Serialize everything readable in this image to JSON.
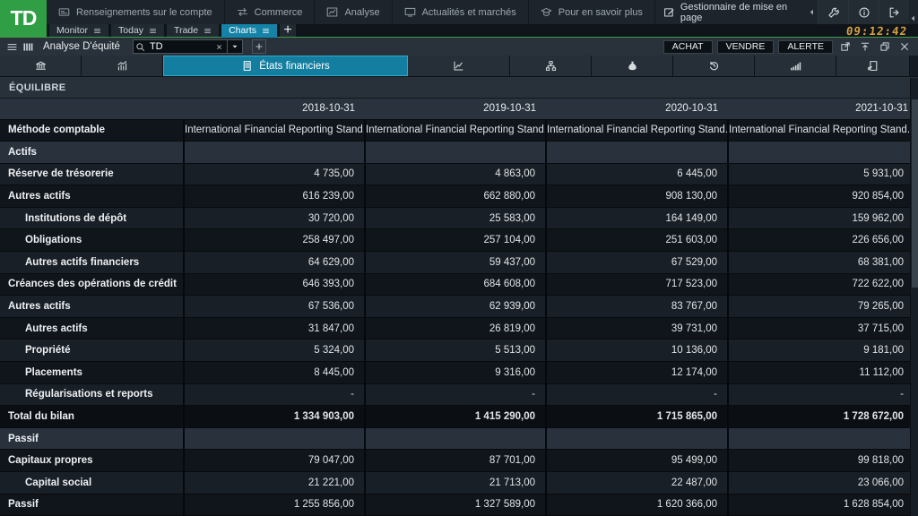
{
  "topbar": {
    "logo_text": "TD",
    "menu": [
      {
        "label": "Renseignements sur le compte",
        "icon": "account-icon"
      },
      {
        "label": "Commerce",
        "icon": "transfer-icon"
      },
      {
        "label": "Analyse",
        "icon": "analysis-icon"
      },
      {
        "label": "Actualités et marchés",
        "icon": "news-icon"
      },
      {
        "label": "Pour en savoir plus",
        "icon": "learn-icon"
      }
    ],
    "layout_manager_label": "Gestionnaire de mise en page",
    "system_icons": [
      "wrench-icon",
      "info-icon",
      "exit-icon"
    ],
    "clock": "09:12:42"
  },
  "workspace_tabs": {
    "tabs": [
      {
        "label": "Monitor",
        "selected": false
      },
      {
        "label": "Today",
        "selected": false
      },
      {
        "label": "Trade",
        "selected": false
      },
      {
        "label": "Charts",
        "selected": true
      }
    ],
    "add_label": "+"
  },
  "panel": {
    "title": "Analyse D'équité",
    "search_value": "TD",
    "trade_buttons": [
      {
        "name": "buy-button",
        "label": "ACHAT"
      },
      {
        "name": "sell-button",
        "label": "VENDRE"
      },
      {
        "name": "alert-button",
        "label": "ALERTE"
      }
    ],
    "window_icons": [
      "popout-icon",
      "pin-top-icon",
      "cascade-icon",
      "close-icon"
    ]
  },
  "view_tabs": [
    {
      "icon": "bank-icon",
      "label": "",
      "selected": false
    },
    {
      "icon": "price-chart-icon",
      "label": "",
      "selected": false
    },
    {
      "icon": "statements-icon",
      "label": "États financiers",
      "selected": true
    },
    {
      "icon": "line-chart-icon",
      "label": "",
      "selected": false
    },
    {
      "icon": "org-chart-icon",
      "label": "",
      "selected": false
    },
    {
      "icon": "money-bag-icon",
      "label": "",
      "selected": false
    },
    {
      "icon": "history-icon",
      "label": "",
      "selected": false
    },
    {
      "icon": "signal-bars-icon",
      "label": "",
      "selected": false
    },
    {
      "icon": "report-icon",
      "label": "",
      "selected": false
    }
  ],
  "section_header": "ÉQUILIBRE",
  "table": {
    "columns": [
      "2018-10-31",
      "2019-10-31",
      "2020-10-31",
      "2021-10-31"
    ],
    "rows": [
      {
        "label": "Méthode comptable",
        "kind": "data",
        "shade": "dark",
        "indent": 0,
        "values": [
          "International Financial Reporting Stand.",
          "International Financial Reporting Stand.",
          "International Financial Reporting Stand.",
          "International Financial Reporting Stand."
        ]
      },
      {
        "label": "Actifs",
        "kind": "section",
        "indent": 0,
        "values": [
          "",
          "",
          "",
          ""
        ]
      },
      {
        "label": "Réserve de trésorerie",
        "kind": "data",
        "shade": "light",
        "indent": 0,
        "values": [
          "4 735,00",
          "4 863,00",
          "6 445,00",
          "5 931,00"
        ]
      },
      {
        "label": "Autres actifs",
        "kind": "data",
        "shade": "dark",
        "indent": 0,
        "values": [
          "616 239,00",
          "662 880,00",
          "908 130,00",
          "920 854,00"
        ]
      },
      {
        "label": "Institutions de dépôt",
        "kind": "data",
        "shade": "light",
        "indent": 1,
        "values": [
          "30 720,00",
          "25 583,00",
          "164 149,00",
          "159 962,00"
        ]
      },
      {
        "label": "Obligations",
        "kind": "data",
        "shade": "dark",
        "indent": 1,
        "values": [
          "258 497,00",
          "257 104,00",
          "251 603,00",
          "226 656,00"
        ]
      },
      {
        "label": "Autres actifs financiers",
        "kind": "data",
        "shade": "light",
        "indent": 1,
        "values": [
          "64 629,00",
          "59 437,00",
          "67 529,00",
          "68 381,00"
        ]
      },
      {
        "label": "Créances des opérations de crédit",
        "kind": "data",
        "shade": "dark",
        "indent": 0,
        "values": [
          "646 393,00",
          "684 608,00",
          "717 523,00",
          "722 622,00"
        ]
      },
      {
        "label": "Autres actifs",
        "kind": "data",
        "shade": "light",
        "indent": 0,
        "values": [
          "67 536,00",
          "62 939,00",
          "83 767,00",
          "79 265,00"
        ]
      },
      {
        "label": "Autres actifs",
        "kind": "data",
        "shade": "dark",
        "indent": 1,
        "values": [
          "31 847,00",
          "26 819,00",
          "39 731,00",
          "37 715,00"
        ]
      },
      {
        "label": "Propriété",
        "kind": "data",
        "shade": "light",
        "indent": 1,
        "values": [
          "5 324,00",
          "5 513,00",
          "10 136,00",
          "9 181,00"
        ]
      },
      {
        "label": "Placements",
        "kind": "data",
        "shade": "dark",
        "indent": 1,
        "values": [
          "8 445,00",
          "9 316,00",
          "12 174,00",
          "11 112,00"
        ]
      },
      {
        "label": "Régularisations et reports",
        "kind": "data",
        "shade": "light",
        "indent": 1,
        "values": [
          "-",
          "-",
          "-",
          "-"
        ]
      },
      {
        "label": "Total du bilan",
        "kind": "total",
        "shade": "dark",
        "indent": 0,
        "values": [
          "1 334 903,00",
          "1 415 290,00",
          "1 715 865,00",
          "1 728 672,00"
        ]
      },
      {
        "label": "Passif",
        "kind": "section",
        "indent": 0,
        "values": [
          "",
          "",
          "",
          ""
        ]
      },
      {
        "label": "Capitaux propres",
        "kind": "data",
        "shade": "dark",
        "indent": 0,
        "values": [
          "79 047,00",
          "87 701,00",
          "95 499,00",
          "99 818,00"
        ]
      },
      {
        "label": "Capital social",
        "kind": "data",
        "shade": "light",
        "indent": 1,
        "values": [
          "21 221,00",
          "21 713,00",
          "22 487,00",
          "23 066,00"
        ]
      },
      {
        "label": "Passif",
        "kind": "data",
        "shade": "dark",
        "indent": 0,
        "values": [
          "1 255 856,00",
          "1 327 589,00",
          "1 620 366,00",
          "1 628 854,00"
        ]
      }
    ]
  }
}
